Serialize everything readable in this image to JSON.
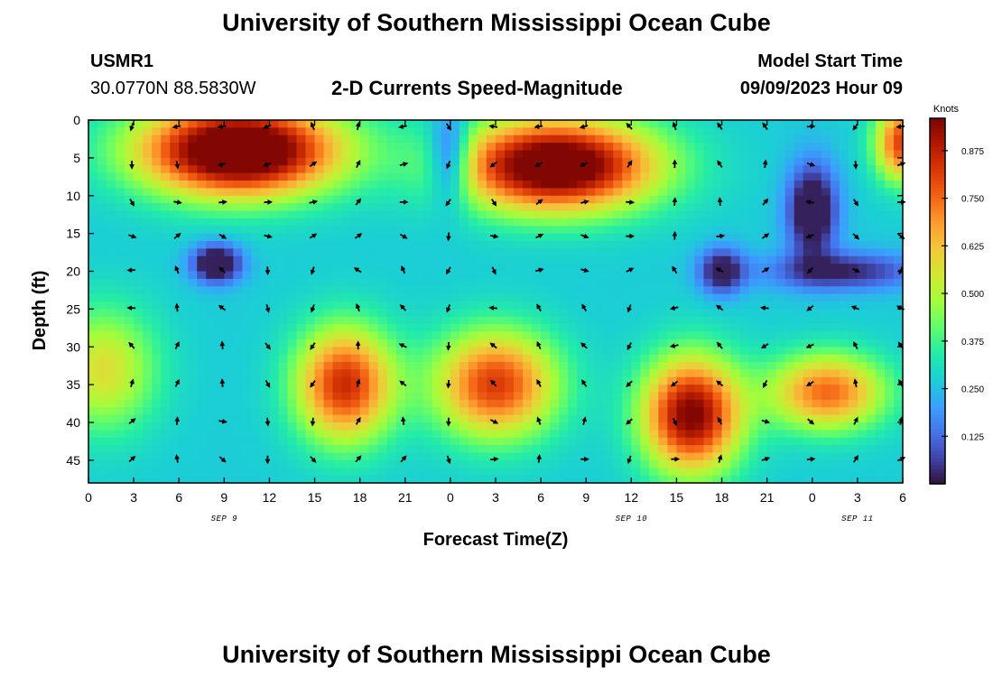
{
  "header": {
    "title": "University of Southern Mississippi Ocean Cube",
    "station_id": "USMR1",
    "station_coords": "30.0770N  88.5830W",
    "chart_heading": "2-D Currents Speed-Magnitude",
    "model_start_label": "Model Start Time",
    "model_start_value": "09/09/2023 Hour 09"
  },
  "footer": {
    "title": "University of Southern Mississippi Ocean Cube"
  },
  "colors": {
    "palette": [
      "#30123b",
      "#4145ab",
      "#4675ed",
      "#39a2fc",
      "#1bcfd4",
      "#24eca6",
      "#61fc6c",
      "#a4fc3b",
      "#d1e834",
      "#f3c63a",
      "#fe9b2d",
      "#f36315",
      "#d93806",
      "#b11901",
      "#7a0402"
    ]
  },
  "chart_data": {
    "type": "heatmap",
    "title": "2-D Currents Speed-Magnitude",
    "xlabel": "Forecast Time(Z)",
    "ylabel": "Depth (ft)",
    "x_ticks": [
      "0",
      "3",
      "6",
      "9",
      "12",
      "15",
      "18",
      "21",
      "0",
      "3",
      "6",
      "9",
      "12",
      "15",
      "18",
      "21",
      "0",
      "3",
      "6"
    ],
    "x_range_hours": [
      0,
      54
    ],
    "date_labels": [
      {
        "text": "SEP 9",
        "hour": 9
      },
      {
        "text": "SEP 10",
        "hour": 36
      },
      {
        "text": "SEP 11",
        "hour": 51
      }
    ],
    "y_ticks": [
      0,
      5,
      10,
      15,
      20,
      25,
      30,
      35,
      40,
      45
    ],
    "ylim": [
      0,
      48
    ],
    "y_inverted": true,
    "colorbar": {
      "label": "Knots",
      "ticks": [
        "0.875",
        "0.750",
        "0.625",
        "0.500",
        "0.375",
        "0.250",
        "0.125"
      ],
      "tick_values": [
        0.875,
        0.75,
        0.625,
        0.5,
        0.375,
        0.25,
        0.125
      ],
      "range": [
        0,
        0.96
      ]
    },
    "speed_features": [
      {
        "kind": "high",
        "hour": 10,
        "depth": 4,
        "sx": 6.5,
        "sy": 6,
        "amp": 0.88
      },
      {
        "kind": "high",
        "hour": 31,
        "depth": 6,
        "sx": 6.5,
        "sy": 6,
        "amp": 0.82
      },
      {
        "kind": "high",
        "hour": 54,
        "depth": 3,
        "sx": 1.8,
        "sy": 5,
        "amp": 0.55
      },
      {
        "kind": "high",
        "hour": 17,
        "depth": 35,
        "sx": 3.2,
        "sy": 7.5,
        "amp": 0.58
      },
      {
        "kind": "high",
        "hour": 27,
        "depth": 35,
        "sx": 4,
        "sy": 7,
        "amp": 0.55
      },
      {
        "kind": "high",
        "hour": 40,
        "depth": 39,
        "sx": 3.2,
        "sy": 7.5,
        "amp": 0.7
      },
      {
        "kind": "high",
        "hour": 49,
        "depth": 36,
        "sx": 3.8,
        "sy": 5,
        "amp": 0.48
      },
      {
        "kind": "high",
        "hour": 1,
        "depth": 33,
        "sx": 3.5,
        "sy": 8,
        "amp": 0.3
      },
      {
        "kind": "low",
        "hour": 24,
        "depth": 5,
        "sx": 1.4,
        "sy": 6,
        "amp": 0.3
      },
      {
        "kind": "low",
        "hour": 8.5,
        "depth": 19,
        "sx": 1.6,
        "sy": 2.5,
        "amp": 0.38
      },
      {
        "kind": "low",
        "hour": 42,
        "depth": 20,
        "sx": 1.5,
        "sy": 3,
        "amp": 0.3
      },
      {
        "kind": "low",
        "hour": 48,
        "depth": 12,
        "sx": 1.6,
        "sy": 6,
        "amp": 0.38
      },
      {
        "kind": "low",
        "hour": 50,
        "depth": 20,
        "sx": 5,
        "sy": 2.5,
        "amp": 0.25
      }
    ],
    "vector_columns_hours": [
      3,
      6,
      9,
      12,
      15,
      18,
      21,
      24,
      27,
      30,
      33,
      36,
      39,
      42,
      45,
      48,
      51,
      54
    ],
    "vector_row_depths": [
      0.5,
      5.5,
      10.5,
      15,
      19.5,
      24.5,
      29.5,
      34.5,
      39.5,
      44.5
    ]
  }
}
